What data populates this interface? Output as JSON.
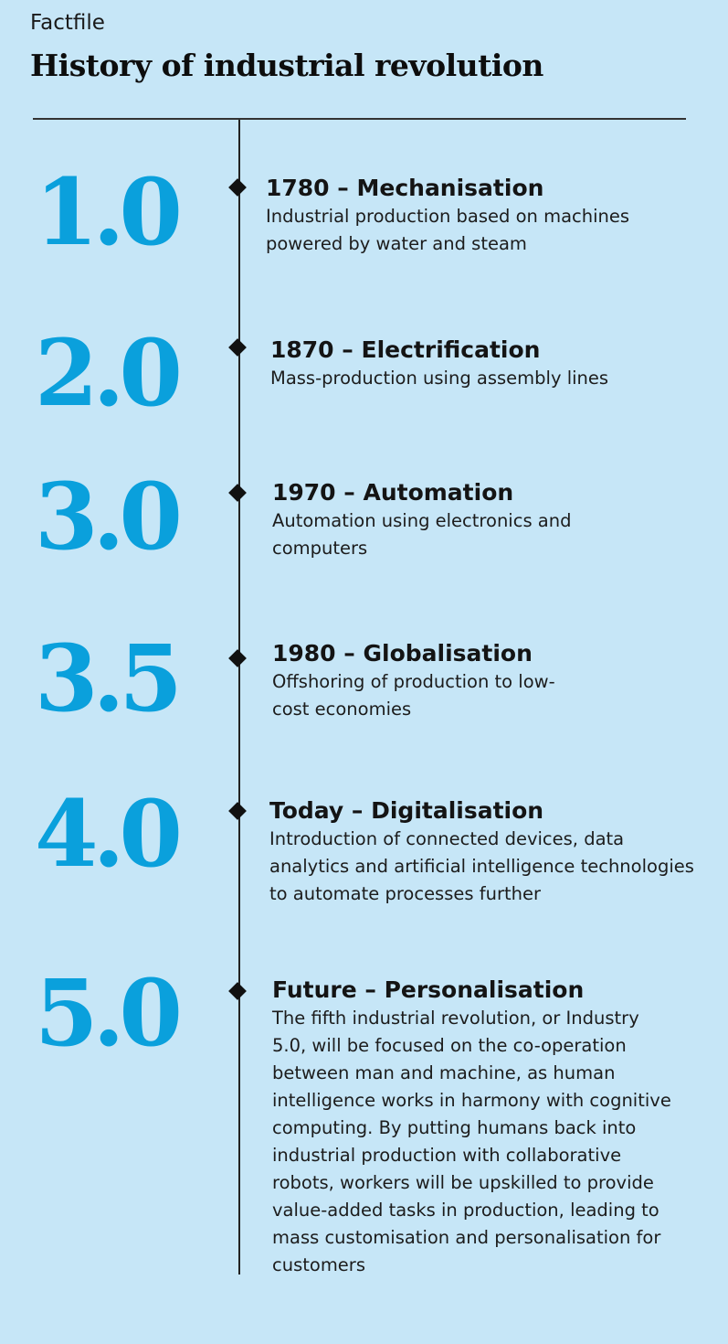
{
  "header": {
    "kicker": "Factfile",
    "title": "History of industrial revolution"
  },
  "accent_color": "#0aa0dc",
  "entries": [
    {
      "number": "1.0",
      "heading": "1780 – Mechanisation",
      "description": "Industrial production based on machines powered by water and steam"
    },
    {
      "number": "2.0",
      "heading": "1870 – Electrification",
      "description": "Mass-production using assembly lines"
    },
    {
      "number": "3.0",
      "heading": "1970 – Automation",
      "description": "Automation using electronics and computers"
    },
    {
      "number": "3.5",
      "heading": "1980 – Globalisation",
      "description": "Offshoring of production to low-cost economies"
    },
    {
      "number": "4.0",
      "heading": "Today – Digitalisation",
      "description": "Introduction of connected devices, data analytics and artificial intelligence technologies to automate processes further"
    },
    {
      "number": "5.0",
      "heading": "Future – Personalisation",
      "description": "The fifth industrial revolution, or Industry 5.0, will be focused on the co-operation between man and machine, as human intelligence works in harmony with cognitive computing. By putting humans back into industrial production with collaborative robots, workers will be upskilled to provide value-added tasks in production, leading to mass customisation and personalisation for customers"
    }
  ]
}
